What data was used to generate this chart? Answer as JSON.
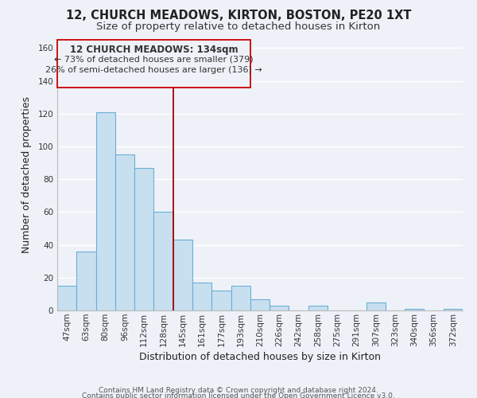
{
  "title": "12, CHURCH MEADOWS, KIRTON, BOSTON, PE20 1XT",
  "subtitle": "Size of property relative to detached houses in Kirton",
  "xlabel": "Distribution of detached houses by size in Kirton",
  "ylabel": "Number of detached properties",
  "bar_color": "#c8dff0",
  "bar_edge_color": "#6aafd4",
  "background_color": "#eef2f8",
  "grid_color": "#ffffff",
  "categories": [
    "47sqm",
    "63sqm",
    "80sqm",
    "96sqm",
    "112sqm",
    "128sqm",
    "145sqm",
    "161sqm",
    "177sqm",
    "193sqm",
    "210sqm",
    "226sqm",
    "242sqm",
    "258sqm",
    "275sqm",
    "291sqm",
    "307sqm",
    "323sqm",
    "340sqm",
    "356sqm",
    "372sqm"
  ],
  "values": [
    15,
    36,
    121,
    95,
    87,
    60,
    43,
    17,
    12,
    15,
    7,
    3,
    0,
    3,
    0,
    0,
    5,
    0,
    1,
    0,
    1
  ],
  "ylim": [
    0,
    165
  ],
  "yticks": [
    0,
    20,
    40,
    60,
    80,
    100,
    120,
    140,
    160
  ],
  "red_line_x": 5.5,
  "annotation_title": "12 CHURCH MEADOWS: 134sqm",
  "annotation_line1": "← 73% of detached houses are smaller (379)",
  "annotation_line2": "26% of semi-detached houses are larger (136) →",
  "footer_line1": "Contains HM Land Registry data © Crown copyright and database right 2024.",
  "footer_line2": "Contains public sector information licensed under the Open Government Licence v3.0.",
  "title_fontsize": 10.5,
  "subtitle_fontsize": 9.5,
  "axis_label_fontsize": 9,
  "tick_fontsize": 7.5,
  "annotation_fontsize": 8.5,
  "footer_fontsize": 6.5
}
